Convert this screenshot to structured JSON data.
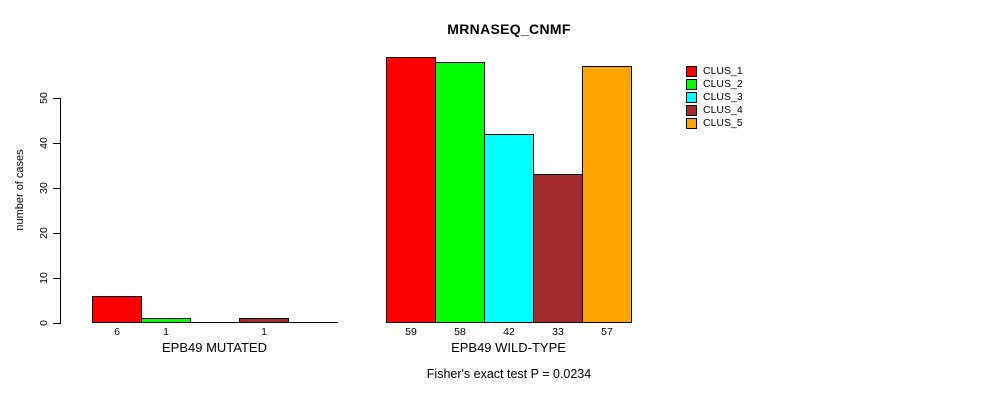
{
  "chart_data": {
    "type": "bar",
    "title": "MRNASEQ_CNMF",
    "ylabel": "number of cases",
    "xlabel": "",
    "ylim": [
      0,
      59
    ],
    "yticks": [
      0,
      10,
      20,
      30,
      40,
      50
    ],
    "grid": false,
    "legend_position": "right",
    "categories": [
      "EPB49 MUTATED",
      "EPB49 WILD-TYPE"
    ],
    "series": [
      {
        "name": "CLUS_1",
        "color": "#FF0000",
        "values": [
          6,
          59
        ]
      },
      {
        "name": "CLUS_2",
        "color": "#00FF00",
        "values": [
          1,
          58
        ]
      },
      {
        "name": "CLUS_3",
        "color": "#00FFFF",
        "values": [
          0,
          42
        ]
      },
      {
        "name": "CLUS_4",
        "color": "#A52A2A",
        "values": [
          1,
          33
        ]
      },
      {
        "name": "CLUS_5",
        "color": "#FFA500",
        "values": [
          0,
          57
        ]
      }
    ],
    "bar_value_labels": {
      "EPB49 MUTATED": [
        "6",
        "1",
        "",
        "1",
        ""
      ],
      "EPB49 WILD-TYPE": [
        "59",
        "58",
        "42",
        "33",
        "57"
      ]
    },
    "annotation": "Fisher's exact test P = 0.0234",
    "colors": {
      "axis": "#000000",
      "background": "#FFFFFF",
      "text": "#000000"
    }
  }
}
